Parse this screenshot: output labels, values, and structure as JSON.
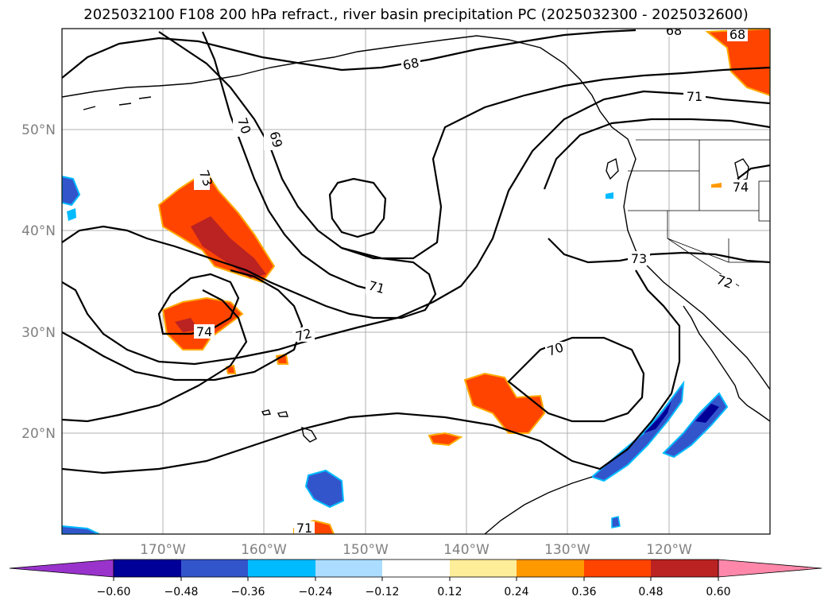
{
  "title": "2025032100 F108 200 hPa refract., river basin precipitation PC (2025032300 - 2025032600)",
  "map": {
    "lon_range": [
      -180,
      -110
    ],
    "lat_range": [
      10,
      60
    ],
    "lon_ticks": [
      "170°W",
      "160°W",
      "150°W",
      "140°W",
      "130°W",
      "120°W"
    ],
    "lat_ticks": [
      "50°N",
      "40°N",
      "30°N",
      "20°N"
    ],
    "contour_labels": [
      "68",
      "68",
      "68",
      "69",
      "70",
      "70",
      "71",
      "71",
      "71",
      "72",
      "72",
      "73",
      "73",
      "74",
      "74"
    ],
    "grid": true
  },
  "colorbar": {
    "tick_labels": [
      "−0.60",
      "−0.48",
      "−0.36",
      "−0.24",
      "−0.12",
      "0.12",
      "0.24",
      "0.36",
      "0.48",
      "0.60"
    ],
    "colors": [
      "#9933cc",
      "#000099",
      "#3355cc",
      "#00bbff",
      "#aaddff",
      "#ffffff",
      "#ffee99",
      "#ff9900",
      "#ff4400",
      "#bb2222",
      "#ff88aa"
    ],
    "extend": "both"
  }
}
